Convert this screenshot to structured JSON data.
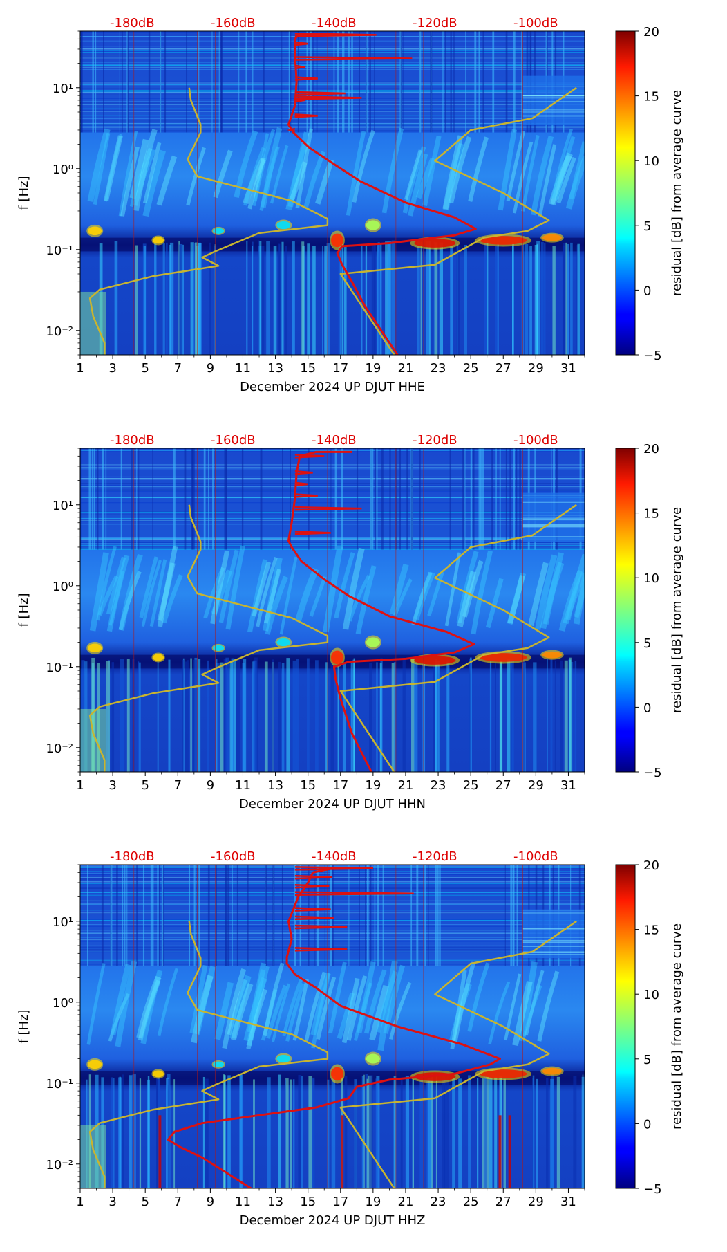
{
  "chart_data": [
    {
      "type": "heatmap",
      "channel": "HHE",
      "xlabel": "December 2024 UP DJUT  HHE",
      "ylabel": "f [Hz]",
      "x_ticks": [
        "1",
        "3",
        "5",
        "7",
        "9",
        "11",
        "13",
        "15",
        "17",
        "19",
        "21",
        "23",
        "25",
        "27",
        "29",
        "31"
      ],
      "y_ticks": [
        {
          "label": "10⁻²",
          "value": 0.01
        },
        {
          "label": "10⁻¹",
          "value": 0.1
        },
        {
          "label": "10⁰",
          "value": 1
        },
        {
          "label": "10¹",
          "value": 10
        }
      ],
      "xlim": [
        1,
        32
      ],
      "ylim": [
        0.005,
        50
      ],
      "top_axis_ticks": [
        {
          "label": "-180dB",
          "day": 4.2
        },
        {
          "label": "-160dB",
          "day": 10.4
        },
        {
          "label": "-140dB",
          "day": 16.6
        },
        {
          "label": "-120dB",
          "day": 22.8
        },
        {
          "label": "-100dB",
          "day": 29.0
        }
      ],
      "colorbar": {
        "label": "residual [dB] from average curve",
        "min": -5,
        "max": 20,
        "ticks": [
          "20",
          "15",
          "10",
          "5",
          "0",
          "−5"
        ]
      },
      "series": [
        {
          "name": "reference noise model (yellow)",
          "color": "#c8b430",
          "points": [
            [
              2.5,
              0.005
            ],
            [
              2.5,
              0.007
            ],
            [
              1.8,
              0.015
            ],
            [
              1.6,
              0.025
            ],
            [
              2.2,
              0.032
            ],
            [
              5.5,
              0.047
            ],
            [
              9.5,
              0.063
            ],
            [
              8.5,
              0.08
            ],
            [
              9.3,
              0.095
            ],
            [
              12,
              0.16
            ],
            [
              16.2,
              0.2
            ],
            [
              16.2,
              0.24
            ],
            [
              14,
              0.4
            ],
            [
              8.2,
              0.8
            ],
            [
              7.6,
              1.3
            ],
            [
              8.4,
              2.8
            ],
            [
              8.4,
              3.5
            ],
            [
              7.8,
              7
            ],
            [
              7.7,
              10
            ]
          ]
        },
        {
          "name": "reference noise model (yellow) high",
          "color": "#c8b430",
          "points": [
            [
              20.3,
              0.005
            ],
            [
              17,
              0.05
            ],
            [
              22.8,
              0.065
            ],
            [
              25.8,
              0.14
            ],
            [
              28.5,
              0.17
            ],
            [
              29.8,
              0.23
            ],
            [
              27,
              0.5
            ],
            [
              22.8,
              1.25
            ],
            [
              25,
              3
            ],
            [
              28.8,
              4.2
            ],
            [
              31.5,
              10
            ]
          ]
        },
        {
          "name": "median PSD (red)",
          "color": "#dd1111",
          "points": [
            [
              20.5,
              0.005
            ],
            [
              18.5,
              0.02
            ],
            [
              17.7,
              0.04
            ],
            [
              17.1,
              0.065
            ],
            [
              16.8,
              0.09
            ],
            [
              17.1,
              0.11
            ],
            [
              20,
              0.12
            ],
            [
              24,
              0.15
            ],
            [
              25.3,
              0.18
            ],
            [
              24,
              0.25
            ],
            [
              21,
              0.38
            ],
            [
              18.2,
              0.7
            ],
            [
              16.7,
              1.1
            ],
            [
              15.1,
              1.8
            ],
            [
              14.1,
              2.8
            ],
            [
              13.8,
              3.5
            ],
            [
              14.2,
              6
            ],
            [
              14.3,
              12
            ],
            [
              14.2,
              25
            ],
            [
              14.2,
              40
            ],
            [
              14.4,
              45
            ],
            [
              17,
              45
            ]
          ]
        }
      ],
      "peaks": [
        [
          13.9,
          3
        ],
        [
          14.4,
          4.5
        ],
        [
          15.6,
          4.5
        ],
        [
          14.8,
          7
        ],
        [
          18.3,
          7.5
        ],
        [
          17.3,
          8.5
        ],
        [
          15.6,
          13
        ],
        [
          14.8,
          18
        ],
        [
          21.4,
          23
        ],
        [
          15,
          35
        ],
        [
          19.2,
          45
        ]
      ]
    },
    {
      "type": "heatmap",
      "channel": "HHN",
      "xlabel": "December 2024 UP DJUT  HHN",
      "ylabel": "f [Hz]",
      "x_ticks": [
        "1",
        "3",
        "5",
        "7",
        "9",
        "11",
        "13",
        "15",
        "17",
        "19",
        "21",
        "23",
        "25",
        "27",
        "29",
        "31"
      ],
      "y_ticks": [
        {
          "label": "10⁻²",
          "value": 0.01
        },
        {
          "label": "10⁻¹",
          "value": 0.1
        },
        {
          "label": "10⁰",
          "value": 1
        },
        {
          "label": "10¹",
          "value": 10
        }
      ],
      "xlim": [
        1,
        32
      ],
      "ylim": [
        0.005,
        50
      ],
      "top_axis_ticks": [
        {
          "label": "-180dB",
          "day": 4.2
        },
        {
          "label": "-160dB",
          "day": 10.4
        },
        {
          "label": "-140dB",
          "day": 16.6
        },
        {
          "label": "-120dB",
          "day": 22.8
        },
        {
          "label": "-100dB",
          "day": 29.0
        }
      ],
      "colorbar": {
        "label": "residual [dB] from average curve",
        "min": -5,
        "max": 20,
        "ticks": [
          "20",
          "15",
          "10",
          "5",
          "0",
          "−5"
        ]
      },
      "series": [
        {
          "name": "reference noise model (yellow)",
          "color": "#c8b430",
          "points": [
            [
              2.5,
              0.005
            ],
            [
              2.5,
              0.007
            ],
            [
              1.8,
              0.015
            ],
            [
              1.6,
              0.025
            ],
            [
              2.2,
              0.032
            ],
            [
              5.5,
              0.047
            ],
            [
              9.5,
              0.063
            ],
            [
              8.5,
              0.08
            ],
            [
              9.3,
              0.095
            ],
            [
              12,
              0.16
            ],
            [
              16.2,
              0.2
            ],
            [
              16.2,
              0.24
            ],
            [
              14,
              0.4
            ],
            [
              8.2,
              0.8
            ],
            [
              7.6,
              1.3
            ],
            [
              8.4,
              2.8
            ],
            [
              8.4,
              3.5
            ],
            [
              7.8,
              7
            ],
            [
              7.7,
              10
            ]
          ]
        },
        {
          "name": "reference noise model (yellow) high",
          "color": "#c8b430",
          "points": [
            [
              20.3,
              0.005
            ],
            [
              17,
              0.05
            ],
            [
              22.8,
              0.065
            ],
            [
              25.8,
              0.14
            ],
            [
              28.5,
              0.17
            ],
            [
              29.8,
              0.23
            ],
            [
              27,
              0.5
            ],
            [
              22.8,
              1.25
            ],
            [
              25,
              3
            ],
            [
              28.8,
              4.2
            ],
            [
              31.5,
              10
            ]
          ]
        },
        {
          "name": "median PSD (red)",
          "color": "#dd1111",
          "points": [
            [
              18.9,
              0.005
            ],
            [
              17.7,
              0.015
            ],
            [
              17.0,
              0.04
            ],
            [
              16.7,
              0.07
            ],
            [
              16.6,
              0.1
            ],
            [
              17.5,
              0.115
            ],
            [
              21,
              0.125
            ],
            [
              24,
              0.15
            ],
            [
              25.2,
              0.19
            ],
            [
              23.5,
              0.27
            ],
            [
              20,
              0.42
            ],
            [
              17.5,
              0.75
            ],
            [
              16,
              1.2
            ],
            [
              14.6,
              2
            ],
            [
              14,
              3
            ],
            [
              13.8,
              3.6
            ],
            [
              14,
              6
            ],
            [
              14.2,
              12
            ],
            [
              14.3,
              25
            ],
            [
              14.5,
              40
            ],
            [
              15.5,
              45
            ],
            [
              17.7,
              45
            ]
          ]
        }
      ],
      "peaks": [
        [
          16.4,
          4.5
        ],
        [
          18.3,
          9
        ],
        [
          15.6,
          13
        ],
        [
          15,
          18
        ],
        [
          15.3,
          25
        ],
        [
          16,
          40
        ]
      ]
    },
    {
      "type": "heatmap",
      "channel": "HHZ",
      "xlabel": "December 2024 UP DJUT  HHZ",
      "ylabel": "f [Hz]",
      "x_ticks": [
        "1",
        "3",
        "5",
        "7",
        "9",
        "11",
        "13",
        "15",
        "17",
        "19",
        "21",
        "23",
        "25",
        "27",
        "29",
        "31"
      ],
      "y_ticks": [
        {
          "label": "10⁻²",
          "value": 0.01
        },
        {
          "label": "10⁻¹",
          "value": 0.1
        },
        {
          "label": "10⁰",
          "value": 1
        },
        {
          "label": "10¹",
          "value": 10
        }
      ],
      "xlim": [
        1,
        32
      ],
      "ylim": [
        0.005,
        50
      ],
      "top_axis_ticks": [
        {
          "label": "-180dB",
          "day": 4.2
        },
        {
          "label": "-160dB",
          "day": 10.4
        },
        {
          "label": "-140dB",
          "day": 16.6
        },
        {
          "label": "-120dB",
          "day": 22.8
        },
        {
          "label": "-100dB",
          "day": 29.0
        }
      ],
      "colorbar": {
        "label": "residual [dB] from average curve",
        "min": -5,
        "max": 20,
        "ticks": [
          "20",
          "15",
          "10",
          "5",
          "0",
          "−5"
        ]
      },
      "series": [
        {
          "name": "reference noise model (yellow)",
          "color": "#c8b430",
          "points": [
            [
              2.5,
              0.005
            ],
            [
              2.5,
              0.007
            ],
            [
              1.8,
              0.015
            ],
            [
              1.6,
              0.025
            ],
            [
              2.2,
              0.032
            ],
            [
              5.5,
              0.047
            ],
            [
              9.5,
              0.063
            ],
            [
              8.5,
              0.08
            ],
            [
              9.3,
              0.095
            ],
            [
              12,
              0.16
            ],
            [
              16.2,
              0.2
            ],
            [
              16.2,
              0.24
            ],
            [
              14,
              0.4
            ],
            [
              8.2,
              0.8
            ],
            [
              7.6,
              1.3
            ],
            [
              8.4,
              2.8
            ],
            [
              8.4,
              3.5
            ],
            [
              7.8,
              7
            ],
            [
              7.7,
              10
            ]
          ]
        },
        {
          "name": "reference noise model (yellow) high",
          "color": "#c8b430",
          "points": [
            [
              20.3,
              0.005
            ],
            [
              17,
              0.05
            ],
            [
              22.8,
              0.065
            ],
            [
              25.8,
              0.14
            ],
            [
              28.5,
              0.17
            ],
            [
              29.8,
              0.23
            ],
            [
              27,
              0.5
            ],
            [
              22.8,
              1.25
            ],
            [
              25,
              3
            ],
            [
              28.8,
              4.2
            ],
            [
              31.5,
              10
            ]
          ]
        },
        {
          "name": "median PSD (red)",
          "color": "#dd1111",
          "points": [
            [
              11.5,
              0.005
            ],
            [
              9.5,
              0.009
            ],
            [
              8.5,
              0.012
            ],
            [
              7.2,
              0.016
            ],
            [
              6.4,
              0.02
            ],
            [
              6.8,
              0.025
            ],
            [
              8.5,
              0.032
            ],
            [
              12,
              0.04
            ],
            [
              15.5,
              0.05
            ],
            [
              17.5,
              0.065
            ],
            [
              18,
              0.09
            ],
            [
              20,
              0.11
            ],
            [
              24,
              0.13
            ],
            [
              26.2,
              0.17
            ],
            [
              26.8,
              0.2
            ],
            [
              24.5,
              0.3
            ],
            [
              20.5,
              0.5
            ],
            [
              17,
              0.9
            ],
            [
              15.5,
              1.5
            ],
            [
              14.2,
              2.2
            ],
            [
              13.7,
              3
            ],
            [
              13.7,
              3.6
            ],
            [
              14,
              6
            ],
            [
              13.8,
              10
            ],
            [
              14.1,
              14
            ],
            [
              14.4,
              20
            ],
            [
              15,
              30
            ],
            [
              15.3,
              40
            ],
            [
              16.5,
              45
            ],
            [
              19,
              45
            ]
          ]
        }
      ],
      "peaks": [
        [
          17.4,
          4.5
        ],
        [
          17.4,
          8.5
        ],
        [
          16.6,
          11
        ],
        [
          16.4,
          14
        ],
        [
          21.5,
          22
        ],
        [
          16.3,
          27
        ],
        [
          16.5,
          35
        ],
        [
          19,
          45
        ]
      ]
    }
  ]
}
